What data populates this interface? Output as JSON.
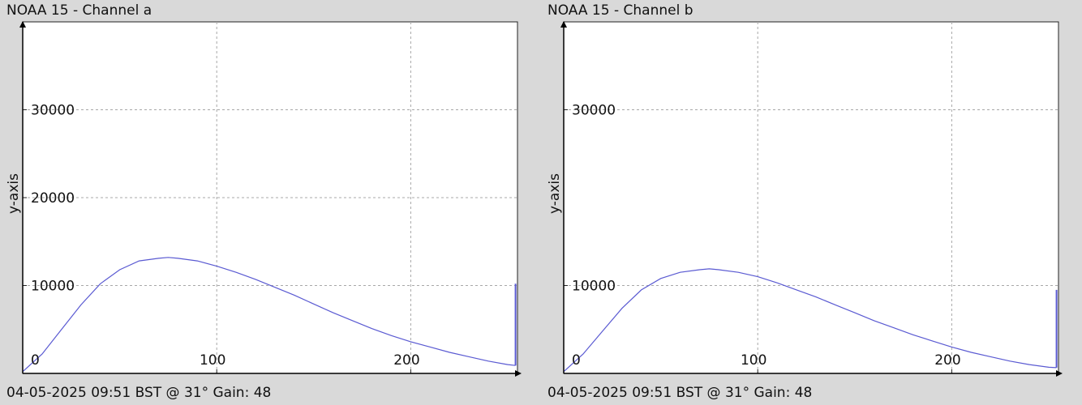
{
  "chart_data": [
    {
      "type": "line",
      "title": "NOAA 15 - Channel a",
      "footer": "04-05-2025 09:51 BST @ 31° Gain: 48",
      "ylabel": "y-axis",
      "xlabel": "",
      "xlim": [
        0,
        255
      ],
      "ylim": [
        0,
        40000
      ],
      "x_ticks": [
        0,
        100,
        200
      ],
      "y_ticks": [
        10000,
        20000,
        30000
      ],
      "grid": true,
      "line_color": "#5a5ad2",
      "series": [
        {
          "x": [
            0,
            10,
            20,
            30,
            40,
            50,
            60,
            70,
            75,
            80,
            90,
            100,
            110,
            120,
            130,
            140,
            150,
            160,
            170,
            180,
            190,
            200,
            210,
            220,
            230,
            240,
            250,
            254
          ],
          "y": [
            200,
            2200,
            5000,
            7800,
            10200,
            11800,
            12800,
            13100,
            13200,
            13100,
            12800,
            12200,
            11500,
            10700,
            9800,
            8900,
            7900,
            6900,
            6000,
            5100,
            4300,
            3600,
            3000,
            2400,
            1900,
            1400,
            1000,
            900
          ]
        },
        {
          "x": [
            254,
            254
          ],
          "y": [
            900,
            10200
          ]
        }
      ]
    },
    {
      "type": "line",
      "title": "NOAA 15 - Channel b",
      "footer": "04-05-2025 09:51 BST @ 31° Gain: 48",
      "ylabel": "y-axis",
      "xlabel": "",
      "xlim": [
        0,
        255
      ],
      "ylim": [
        0,
        40000
      ],
      "x_ticks": [
        0,
        100,
        200
      ],
      "y_ticks": [
        10000,
        30000
      ],
      "grid": true,
      "line_color": "#5a5ad2",
      "series": [
        {
          "x": [
            0,
            10,
            20,
            30,
            40,
            50,
            60,
            70,
            75,
            80,
            90,
            100,
            110,
            120,
            130,
            140,
            150,
            160,
            170,
            180,
            190,
            200,
            210,
            220,
            230,
            240,
            250,
            254
          ],
          "y": [
            200,
            2200,
            4800,
            7400,
            9500,
            10800,
            11500,
            11800,
            11900,
            11800,
            11500,
            11000,
            10300,
            9500,
            8700,
            7800,
            6900,
            6000,
            5200,
            4400,
            3700,
            3000,
            2400,
            1900,
            1400,
            1000,
            700,
            650
          ]
        },
        {
          "x": [
            254,
            254
          ],
          "y": [
            650,
            9500
          ]
        }
      ]
    }
  ]
}
